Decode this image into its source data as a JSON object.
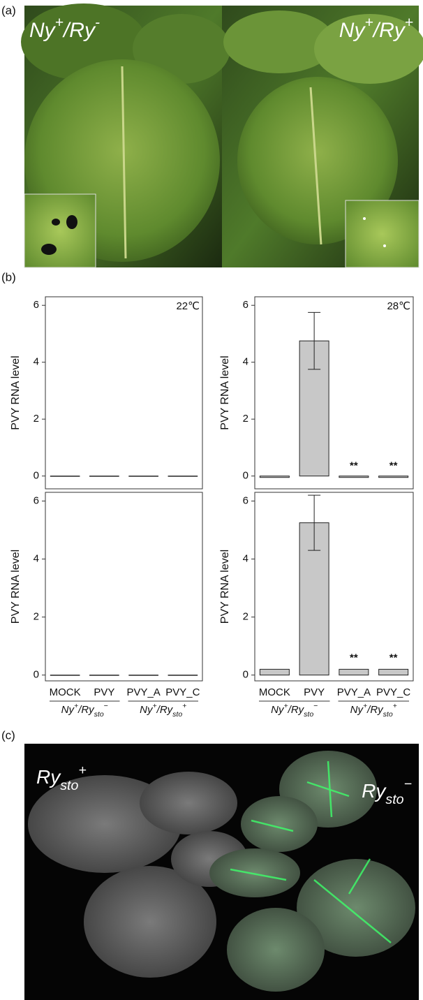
{
  "panel_labels": [
    "(a)",
    "(b)",
    "(c)"
  ],
  "photo_a": {
    "left": {
      "parts": [
        {
          "text": "Ny"
        },
        {
          "text": "+",
          "shift": "super"
        },
        {
          "text": "/Ry"
        },
        {
          "text": "-",
          "shift": "super"
        }
      ]
    },
    "right": {
      "parts": [
        {
          "text": "Ny"
        },
        {
          "text": "+",
          "shift": "super"
        },
        {
          "text": "/Ry"
        },
        {
          "text": "+",
          "shift": "super"
        }
      ]
    }
  },
  "photo_c": {
    "left": {
      "parts": [
        {
          "text": "Ry"
        },
        {
          "text": "sto",
          "shift": "sub"
        },
        {
          "text": "+",
          "shift": "super"
        }
      ]
    },
    "right": {
      "parts": [
        {
          "text": "Ry"
        },
        {
          "text": "sto",
          "shift": "sub"
        },
        {
          "text": "−",
          "shift": "super"
        }
      ]
    }
  },
  "chart_data": [
    {
      "type": "bar",
      "title": "22℃",
      "ylabel": "PVY RNA level",
      "categories": [
        null,
        null,
        null,
        null
      ],
      "series": [
        {
          "color": "#c8c8c8",
          "values": [
            0,
            0,
            0,
            0
          ],
          "errors": [
            null,
            null,
            null,
            null
          ]
        }
      ],
      "significance": [
        null,
        null,
        null,
        null
      ],
      "ylim": [
        -0.45,
        6.3
      ],
      "yticks": [
        0,
        2,
        4,
        6
      ]
    },
    {
      "type": "bar",
      "title": "28℃",
      "ylabel": "PVY RNA level",
      "categories": [
        null,
        null,
        null,
        null
      ],
      "series": [
        {
          "color": "#c8c8c8",
          "values": [
            -0.05,
            4.75,
            -0.05,
            -0.05
          ],
          "errors": [
            null,
            1.0,
            null,
            null
          ]
        }
      ],
      "significance": [
        null,
        null,
        "**",
        "**"
      ],
      "ylim": [
        -0.45,
        6.3
      ],
      "yticks": [
        0,
        2,
        4,
        6
      ]
    },
    {
      "type": "bar",
      "ylabel": "PVY RNA level",
      "categories": [
        "MOCK",
        "PVY",
        "PVY_A",
        "PVY_C"
      ],
      "groups": [
        {
          "parts": [
            {
              "text": "Ny"
            },
            {
              "text": "+",
              "shift": "super"
            },
            {
              "text": "/Ry"
            },
            {
              "text": "sto",
              "shift": "sub"
            },
            {
              "text": "−",
              "shift": "super"
            }
          ]
        },
        {
          "parts": [
            {
              "text": "Ny"
            },
            {
              "text": "+",
              "shift": "super"
            },
            {
              "text": "/Ry"
            },
            {
              "text": "sto",
              "shift": "sub"
            },
            {
              "text": "+",
              "shift": "super"
            }
          ]
        }
      ],
      "series": [
        {
          "color": "#c8c8c8",
          "values": [
            0,
            0,
            0,
            0
          ],
          "errors": [
            null,
            null,
            null,
            null
          ]
        }
      ],
      "significance": [
        null,
        null,
        null,
        null
      ],
      "ylim": [
        -0.2,
        6.3
      ],
      "yticks": [
        0,
        2,
        4,
        6
      ]
    },
    {
      "type": "bar",
      "ylabel": "PVY RNA level",
      "categories": [
        "MOCK",
        "PVY",
        "PVY_A",
        "PVY_C"
      ],
      "groups": [
        {
          "parts": [
            {
              "text": "Ny"
            },
            {
              "text": "+",
              "shift": "super"
            },
            {
              "text": "/Ry"
            },
            {
              "text": "sto",
              "shift": "sub"
            },
            {
              "text": "−",
              "shift": "super"
            }
          ]
        },
        {
          "parts": [
            {
              "text": "Ny"
            },
            {
              "text": "+",
              "shift": "super"
            },
            {
              "text": "/Ry"
            },
            {
              "text": "sto",
              "shift": "sub"
            },
            {
              "text": "+",
              "shift": "super"
            }
          ]
        }
      ],
      "series": [
        {
          "color": "#c8c8c8",
          "values": [
            0.2,
            5.25,
            0.2,
            0.2
          ],
          "errors": [
            null,
            0.95,
            null,
            null
          ]
        }
      ],
      "significance": [
        null,
        null,
        "**",
        "**"
      ],
      "ylim": [
        -0.2,
        6.3
      ],
      "yticks": [
        0,
        2,
        4,
        6
      ]
    }
  ]
}
